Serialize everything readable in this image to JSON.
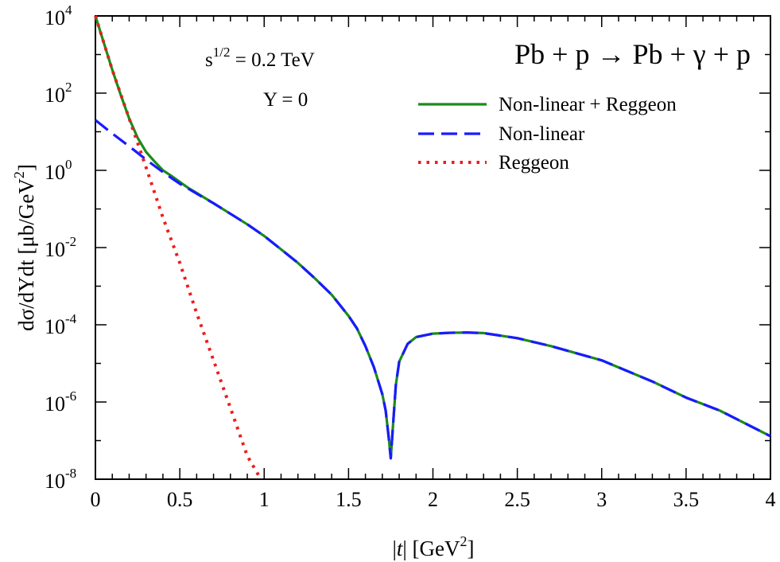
{
  "chart_data": {
    "type": "line",
    "title": "Pb + p → Pb + γ + p",
    "annotations": {
      "energy_base": "s",
      "energy_sup": "1/2",
      "energy_rest": " = 0.2 TeV",
      "rapidity": "Y = 0"
    },
    "xlabel": {
      "pre": "|",
      "var": "t",
      "post": "| [GeV",
      "sup": "2",
      "close": "]"
    },
    "ylabel": {
      "pre": "dσ/dYdt [μb/GeV",
      "sup": "2",
      "close": "]"
    },
    "xlim": [
      0,
      4
    ],
    "ylim_log10": [
      -8,
      4
    ],
    "y_scale": "log",
    "x_ticks": [
      {
        "value": 0,
        "label": "0"
      },
      {
        "value": 0.5,
        "label": "0.5"
      },
      {
        "value": 1,
        "label": "1"
      },
      {
        "value": 1.5,
        "label": "1.5"
      },
      {
        "value": 2,
        "label": "2"
      },
      {
        "value": 2.5,
        "label": "2.5"
      },
      {
        "value": 3,
        "label": "3"
      },
      {
        "value": 3.5,
        "label": "3.5"
      },
      {
        "value": 4,
        "label": "4"
      }
    ],
    "y_ticks": [
      {
        "exp": 4,
        "base": "10",
        "sup": "4"
      },
      {
        "exp": 2,
        "base": "10",
        "sup": "2"
      },
      {
        "exp": 0,
        "base": "10",
        "sup": "0"
      },
      {
        "exp": -2,
        "base": "10",
        "sup": "-2"
      },
      {
        "exp": -4,
        "base": "10",
        "sup": "-4"
      },
      {
        "exp": -6,
        "base": "10",
        "sup": "-6"
      },
      {
        "exp": -8,
        "base": "10",
        "sup": "-8"
      }
    ],
    "grid": false,
    "legend_position": "top-right",
    "series": [
      {
        "name": "Non-linear + Reggeon",
        "color": "#1a8c1a",
        "style": "solid",
        "x": [
          0,
          0.05,
          0.1,
          0.15,
          0.2,
          0.25,
          0.3,
          0.35,
          0.4,
          0.45,
          0.5,
          0.55,
          0.6,
          0.7,
          0.8,
          0.9,
          1.0,
          1.1,
          1.2,
          1.3,
          1.4,
          1.5,
          1.55,
          1.6,
          1.65,
          1.7,
          1.72,
          1.74,
          1.75,
          1.76,
          1.78,
          1.8,
          1.85,
          1.9,
          2.0,
          2.1,
          2.2,
          2.3,
          2.5,
          2.7,
          3.0,
          3.3,
          3.5,
          3.7,
          4.0
        ],
        "y": [
          10000,
          2000,
          400,
          90,
          22,
          7,
          3,
          1.7,
          1.0,
          0.72,
          0.5,
          0.35,
          0.26,
          0.14,
          0.075,
          0.04,
          0.02,
          0.009,
          0.004,
          0.0016,
          0.0006,
          0.00017,
          8e-05,
          2.8e-05,
          8e-06,
          1.6e-06,
          6e-07,
          1e-07,
          3.5e-08,
          1.5e-07,
          2.7e-06,
          1.1e-05,
          3.2e-05,
          4.8e-05,
          5.9e-05,
          6.2e-05,
          6.3e-05,
          6.1e-05,
          4.5e-05,
          2.8e-05,
          1.2e-05,
          3.4e-06,
          1.3e-06,
          6e-07,
          1.3e-07
        ]
      },
      {
        "name": "Non-linear",
        "color": "#1a1aff",
        "style": "dashed",
        "x": [
          0,
          0.1,
          0.2,
          0.3,
          0.4,
          0.5,
          0.6,
          0.7,
          0.8,
          0.9,
          1.0,
          1.1,
          1.2,
          1.3,
          1.4,
          1.5,
          1.55,
          1.6,
          1.65,
          1.7,
          1.72,
          1.74,
          1.75,
          1.76,
          1.78,
          1.8,
          1.85,
          1.9,
          2.0,
          2.1,
          2.2,
          2.3,
          2.5,
          2.7,
          3.0,
          3.3,
          3.5,
          3.7,
          4.0
        ],
        "y": [
          20,
          9,
          4.2,
          1.9,
          0.9,
          0.45,
          0.25,
          0.14,
          0.075,
          0.04,
          0.02,
          0.009,
          0.004,
          0.0016,
          0.0006,
          0.00017,
          8e-05,
          2.8e-05,
          8e-06,
          1.6e-06,
          6e-07,
          1e-07,
          3.5e-08,
          1.5e-07,
          2.7e-06,
          1.1e-05,
          3.2e-05,
          4.8e-05,
          5.9e-05,
          6.2e-05,
          6.3e-05,
          6.1e-05,
          4.5e-05,
          2.8e-05,
          1.2e-05,
          3.4e-06,
          1.3e-06,
          6e-07,
          1.3e-07
        ]
      },
      {
        "name": "Reggeon",
        "color": "#ee1c1c",
        "style": "dotted",
        "x": [
          0,
          0.1,
          0.2,
          0.3,
          0.4,
          0.5,
          0.6,
          0.7,
          0.8,
          0.9,
          0.97
        ],
        "y": [
          10000,
          400,
          22,
          1.2,
          0.06,
          0.004,
          0.0002,
          1.2e-05,
          7e-07,
          4e-08,
          1.2e-08
        ]
      }
    ]
  }
}
